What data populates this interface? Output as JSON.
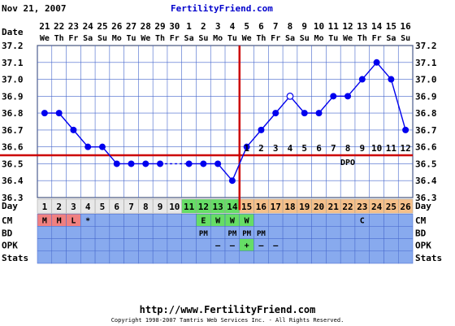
{
  "header": {
    "date": "Nov 21, 2007",
    "site": "FertilityFriend.com"
  },
  "footer": {
    "url": "http://www.FertilityFriend.com",
    "copyright": "Copyright 1998-2007 Tamtris Web Services Inc. - All Rights Reserved."
  },
  "colors": {
    "temp_line": "#0000ee",
    "coverline": "#cc0000",
    "grid_bg": "#ffffff",
    "row_blue": "#88aaee",
    "day_normal": "#e8e8e8",
    "day_fertile": "#66dd66",
    "day_post": "#f5c08a",
    "menses": "#f08080"
  },
  "chart_data": {
    "type": "line",
    "title": "",
    "row_labels": [
      "Date",
      "Day",
      "CM",
      "BD",
      "OPK",
      "Stats"
    ],
    "dates": [
      "21",
      "22",
      "23",
      "24",
      "25",
      "26",
      "27",
      "28",
      "29",
      "30",
      "1",
      "2",
      "3",
      "4",
      "5",
      "6",
      "7",
      "8",
      "9",
      "10",
      "11",
      "12",
      "13",
      "14",
      "15",
      "16"
    ],
    "weekdays": [
      "We",
      "Th",
      "Fr",
      "Sa",
      "Su",
      "Mo",
      "Tu",
      "We",
      "Th",
      "Fr",
      "Sa",
      "Su",
      "Mo",
      "Tu",
      "We",
      "Th",
      "Fr",
      "Sa",
      "Su",
      "Mo",
      "Tu",
      "We",
      "Th",
      "Fr",
      "Sa",
      "Su"
    ],
    "cycle_days": [
      "1",
      "2",
      "3",
      "4",
      "5",
      "6",
      "7",
      "8",
      "9",
      "10",
      "11",
      "12",
      "13",
      "14",
      "15",
      "16",
      "17",
      "18",
      "19",
      "20",
      "21",
      "22",
      "23",
      "24",
      "25",
      "26"
    ],
    "temps": [
      36.8,
      36.8,
      36.7,
      36.6,
      36.6,
      36.5,
      36.5,
      36.5,
      36.5,
      null,
      36.5,
      36.5,
      36.5,
      36.4,
      36.6,
      36.7,
      36.8,
      36.9,
      36.8,
      36.8,
      36.9,
      36.9,
      37.0,
      37.1,
      37.0,
      36.7
    ],
    "open_points": [
      18
    ],
    "dashed_after": [
      9
    ],
    "y_ticks": [
      "36.3",
      "36.4",
      "36.5",
      "36.6",
      "36.7",
      "36.8",
      "36.9",
      "37.0",
      "37.1",
      "37.2"
    ],
    "ylim": [
      36.3,
      37.2
    ],
    "coverline": 36.55,
    "ovulation_day": 14,
    "dpo_label": "DPO",
    "dpo": [
      "1",
      "2",
      "3",
      "4",
      "5",
      "6",
      "7",
      "8",
      "9",
      "10",
      "11",
      "12"
    ],
    "day_colors": [
      "normal",
      "normal",
      "normal",
      "normal",
      "normal",
      "normal",
      "normal",
      "normal",
      "normal",
      "normal",
      "fertile",
      "fertile",
      "fertile",
      "fertile",
      "post",
      "post",
      "post",
      "post",
      "post",
      "post",
      "post",
      "post",
      "post",
      "post",
      "post",
      "post"
    ],
    "cm": {
      "1": "M",
      "2": "M",
      "3": "L",
      "4": "*",
      "12": "E",
      "13": "W",
      "14": "W",
      "15": "W",
      "23": "C"
    },
    "cm_colors": {
      "1": "menses",
      "2": "menses",
      "3": "menses",
      "12": "fertile",
      "13": "fertile",
      "14": "fertile",
      "15": "fertile"
    },
    "bd": {
      "12": "PM",
      "14": "PM",
      "15": "PM",
      "16": "PM"
    },
    "opk": {
      "13": "–",
      "14": "–",
      "15": "+",
      "16": "–",
      "17": "–"
    },
    "opk_colors": {
      "15": "fertile"
    },
    "grid": true
  }
}
